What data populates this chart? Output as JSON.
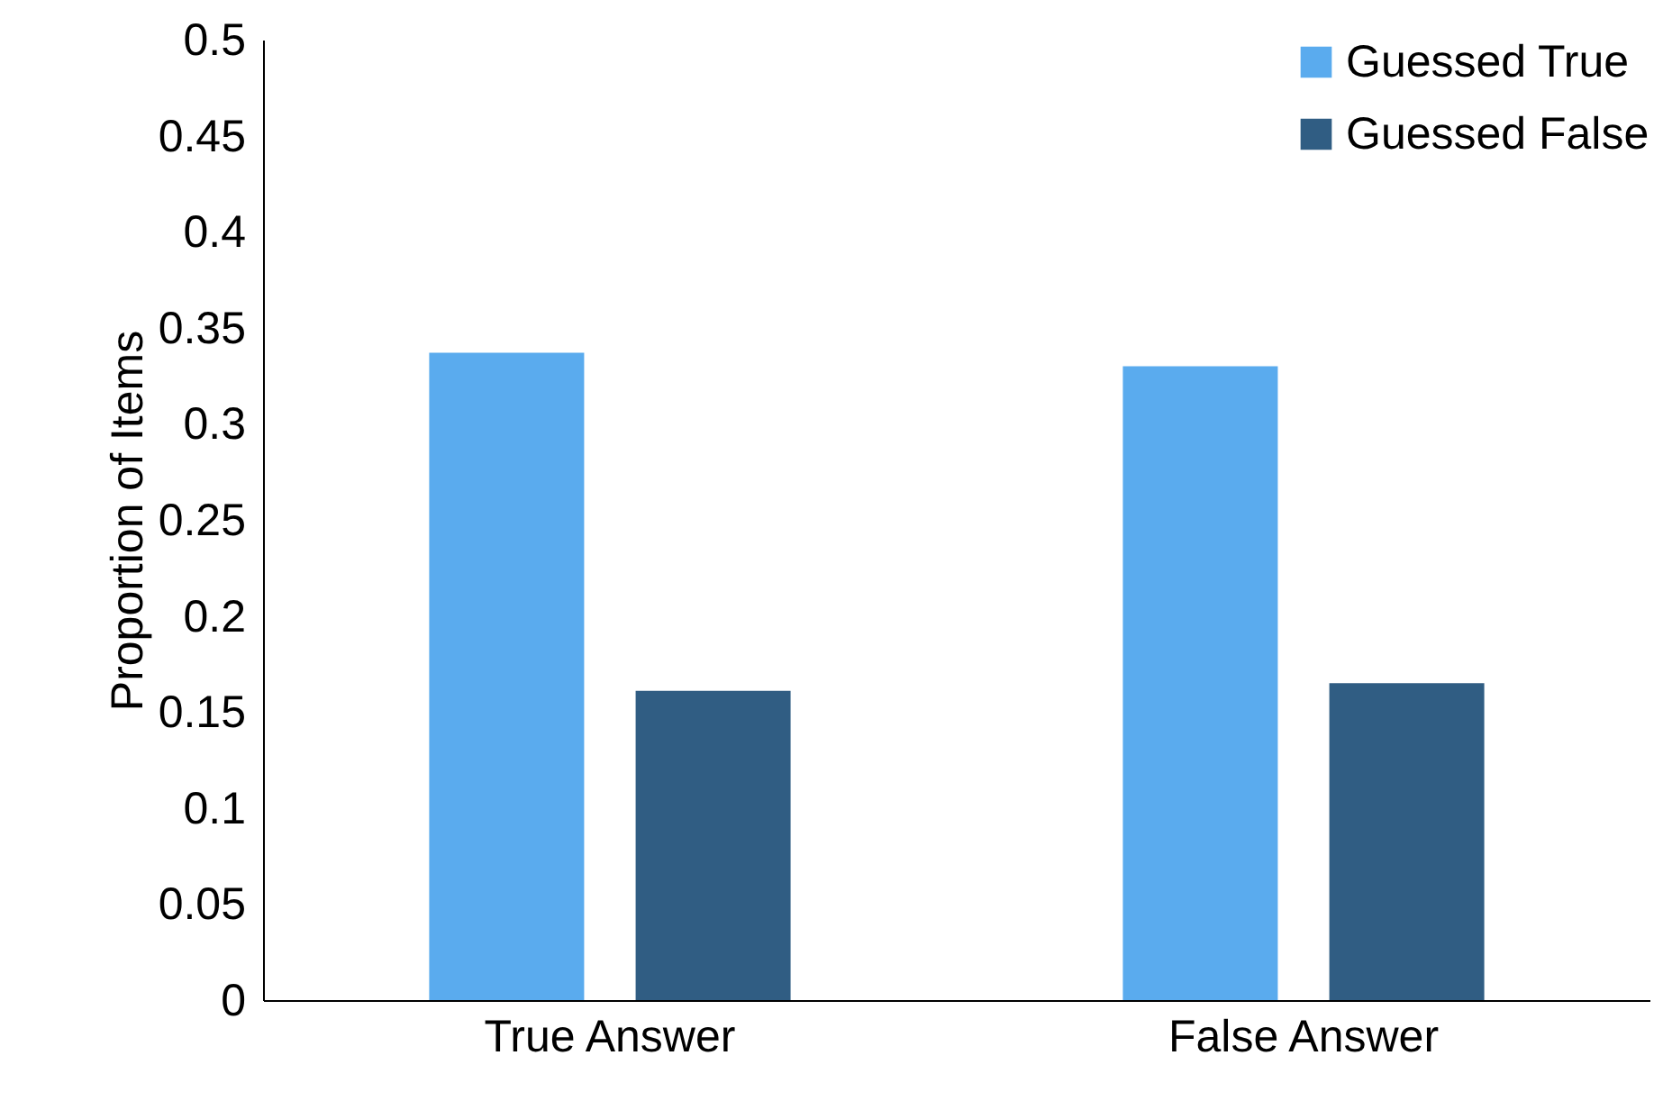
{
  "chart_data": {
    "type": "bar",
    "ylabel": "Proportion of Items",
    "categories": [
      "True Answer",
      "False Answer"
    ],
    "series": [
      {
        "name": "Guessed True",
        "color": "#5aabee",
        "values": [
          0.337,
          0.33
        ]
      },
      {
        "name": "Guessed False",
        "color": "#305d83",
        "values": [
          0.161,
          0.165
        ]
      }
    ],
    "ylim": [
      0,
      0.5
    ],
    "yticks": [
      0,
      0.05,
      0.1,
      0.15,
      0.2,
      0.25,
      0.3,
      0.35,
      0.4,
      0.45,
      0.5
    ],
    "grid": false,
    "legend": "top right"
  }
}
